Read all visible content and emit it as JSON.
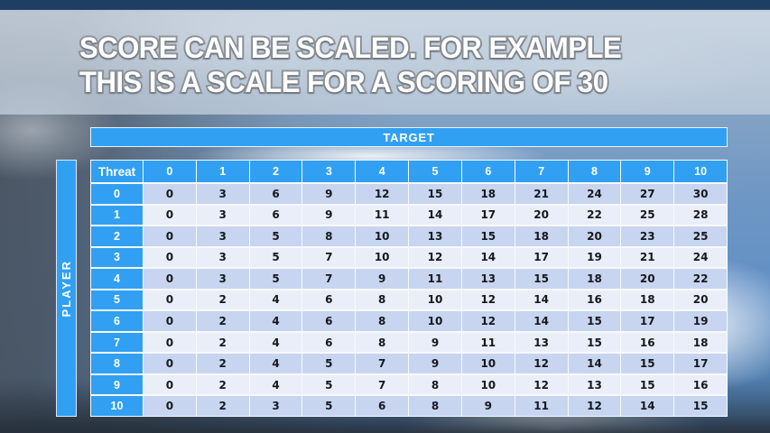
{
  "slide": {
    "title_line1": "SCORE CAN BE SCALED. FOR EXAMPLE",
    "title_line2": "THIS IS A SCALE FOR A SCORING OF 30"
  },
  "chart_data": {
    "type": "table",
    "title": "SCORE CAN BE SCALED. FOR EXAMPLE THIS IS A SCALE FOR A SCORING OF 30",
    "column_group_label": "TARGET",
    "row_group_label": "PLAYER",
    "corner_label": "Threat",
    "columns": [
      "0",
      "1",
      "2",
      "3",
      "4",
      "5",
      "6",
      "7",
      "8",
      "9",
      "10"
    ],
    "row_labels": [
      "0",
      "1",
      "2",
      "3",
      "4",
      "5",
      "6",
      "7",
      "8",
      "9",
      "10"
    ],
    "values": [
      [
        0,
        3,
        6,
        9,
        12,
        15,
        18,
        21,
        24,
        27,
        30
      ],
      [
        0,
        3,
        6,
        9,
        11,
        14,
        17,
        20,
        22,
        25,
        28
      ],
      [
        0,
        3,
        5,
        8,
        10,
        13,
        15,
        18,
        20,
        23,
        25
      ],
      [
        0,
        3,
        5,
        7,
        10,
        12,
        14,
        17,
        19,
        21,
        24
      ],
      [
        0,
        3,
        5,
        7,
        9,
        11,
        13,
        15,
        18,
        20,
        22
      ],
      [
        0,
        2,
        4,
        6,
        8,
        10,
        12,
        14,
        16,
        18,
        20
      ],
      [
        0,
        2,
        4,
        6,
        8,
        10,
        12,
        14,
        15,
        17,
        19
      ],
      [
        0,
        2,
        4,
        6,
        8,
        9,
        11,
        13,
        15,
        16,
        18
      ],
      [
        0,
        2,
        4,
        5,
        7,
        9,
        10,
        12,
        14,
        15,
        17
      ],
      [
        0,
        2,
        4,
        5,
        7,
        8,
        10,
        12,
        13,
        15,
        16
      ],
      [
        0,
        2,
        3,
        5,
        6,
        8,
        9,
        11,
        12,
        14,
        15
      ]
    ]
  },
  "colors": {
    "accent_blue": "#31a0f2",
    "row_even": "#c7d5f0",
    "row_odd": "#e9eef9",
    "cell_text": "#17181d",
    "gridline": "#f7fafd",
    "title_fill": "#ffffff",
    "title_outline": "#8e949b"
  }
}
